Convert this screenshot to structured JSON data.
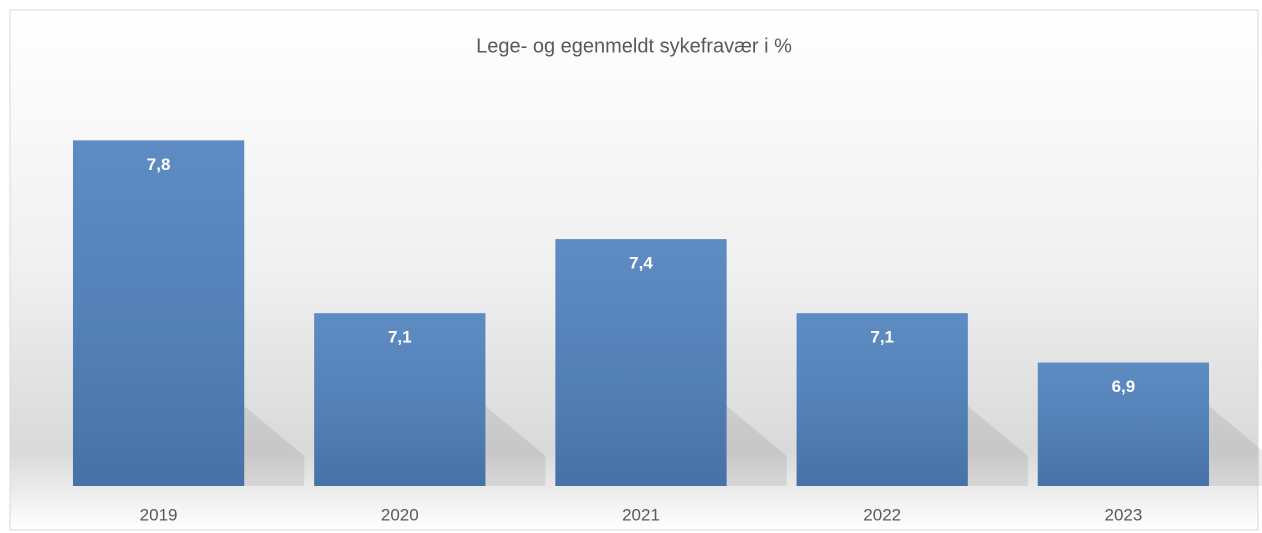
{
  "chart_data": {
    "type": "bar",
    "title": "Lege- og egenmeldt sykefravær i %",
    "categories": [
      "2019",
      "2020",
      "2021",
      "2022",
      "2023"
    ],
    "values": [
      7.8,
      7.1,
      7.4,
      7.1,
      6.9
    ],
    "value_labels": [
      "7,8",
      "7,1",
      "7,4",
      "7,1",
      "6,9"
    ],
    "color": "#4f81bd",
    "ylim": [
      6.4,
      8.0
    ]
  }
}
